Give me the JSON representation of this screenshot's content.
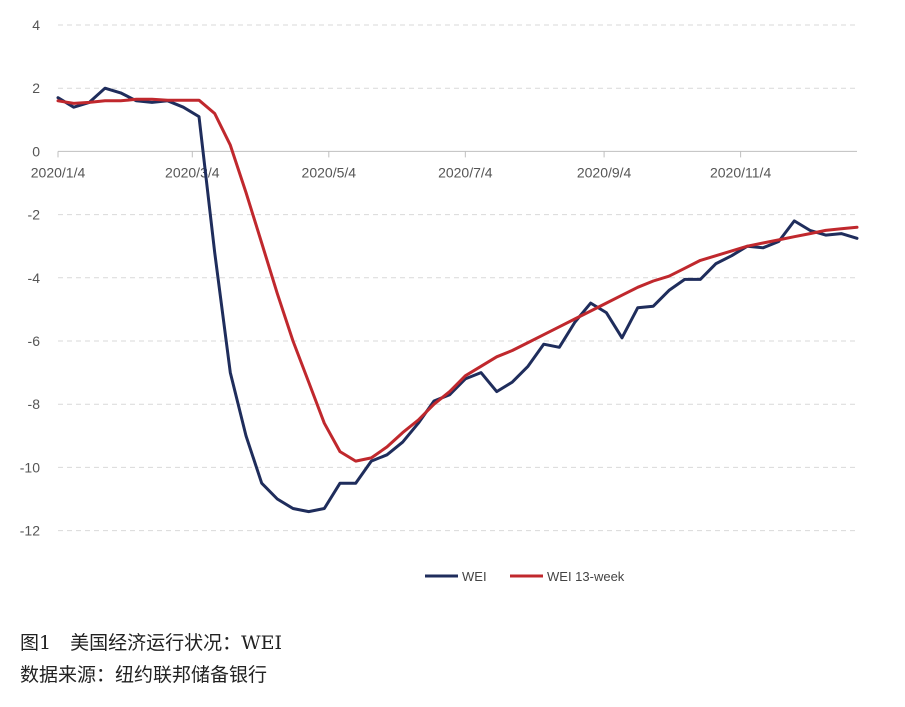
{
  "chart_data": {
    "type": "line",
    "x_dates": [
      "2020-01-04",
      "2020-01-11",
      "2020-01-18",
      "2020-01-25",
      "2020-02-01",
      "2020-02-08",
      "2020-02-15",
      "2020-02-22",
      "2020-02-29",
      "2020-03-07",
      "2020-03-14",
      "2020-03-21",
      "2020-03-28",
      "2020-04-04",
      "2020-04-11",
      "2020-04-18",
      "2020-04-25",
      "2020-05-02",
      "2020-05-09",
      "2020-05-16",
      "2020-05-23",
      "2020-05-30",
      "2020-06-06",
      "2020-06-13",
      "2020-06-20",
      "2020-06-27",
      "2020-07-04",
      "2020-07-11",
      "2020-07-18",
      "2020-07-25",
      "2020-08-01",
      "2020-08-08",
      "2020-08-15",
      "2020-08-22",
      "2020-08-29",
      "2020-09-05",
      "2020-09-12",
      "2020-09-19",
      "2020-09-26",
      "2020-10-03",
      "2020-10-10",
      "2020-10-17",
      "2020-10-24",
      "2020-10-31",
      "2020-11-07",
      "2020-11-14",
      "2020-11-21",
      "2020-11-28",
      "2020-12-05",
      "2020-12-12",
      "2020-12-19",
      "2020-12-26"
    ],
    "series": [
      {
        "name": "WEI",
        "color": "#1f2d5c",
        "values": [
          1.7,
          1.4,
          1.55,
          2.0,
          1.85,
          1.6,
          1.55,
          1.6,
          1.4,
          1.1,
          -3.2,
          -7.0,
          -9.0,
          -10.5,
          -11.0,
          -11.3,
          -11.4,
          -11.3,
          -10.5,
          -10.5,
          -9.8,
          -9.6,
          -9.2,
          -8.6,
          -7.9,
          -7.7,
          -7.2,
          -7.0,
          -7.6,
          -7.3,
          -6.8,
          -6.1,
          -6.2,
          -5.4,
          -4.8,
          -5.1,
          -5.9,
          -4.95,
          -4.9,
          -4.4,
          -4.05,
          -4.05,
          -3.55,
          -3.3,
          -3.0,
          -3.05,
          -2.85,
          -2.2,
          -2.5,
          -2.65,
          -2.6,
          -2.75
        ]
      },
      {
        "name": "WEI 13-week",
        "color": "#c0282d",
        "values": [
          1.6,
          1.52,
          1.55,
          1.6,
          1.6,
          1.65,
          1.65,
          1.62,
          1.62,
          1.62,
          1.2,
          0.2,
          -1.3,
          -2.9,
          -4.5,
          -6.0,
          -7.3,
          -8.6,
          -9.5,
          -9.8,
          -9.7,
          -9.35,
          -8.9,
          -8.5,
          -8.0,
          -7.6,
          -7.1,
          -6.8,
          -6.5,
          -6.3,
          -6.05,
          -5.8,
          -5.55,
          -5.3,
          -5.05,
          -4.8,
          -4.55,
          -4.3,
          -4.1,
          -3.95,
          -3.7,
          -3.45,
          -3.3,
          -3.15,
          -3.0,
          -2.9,
          -2.8,
          -2.7,
          -2.6,
          -2.5,
          -2.45,
          -2.4
        ]
      }
    ],
    "x_tick_labels": [
      "2020/1/4",
      "2020/3/4",
      "2020/5/4",
      "2020/7/4",
      "2020/9/4",
      "2020/11/4"
    ],
    "y_ticks": [
      4,
      2,
      0,
      -2,
      -4,
      -6,
      -8,
      -10,
      -12
    ],
    "ylim": [
      -13,
      4
    ],
    "grid": "horizontal dashed",
    "legend_position": "bottom"
  },
  "caption": {
    "figure_title": "图1　美国经济运行状况：WEI",
    "source": "数据来源：纽约联邦储备银行"
  }
}
